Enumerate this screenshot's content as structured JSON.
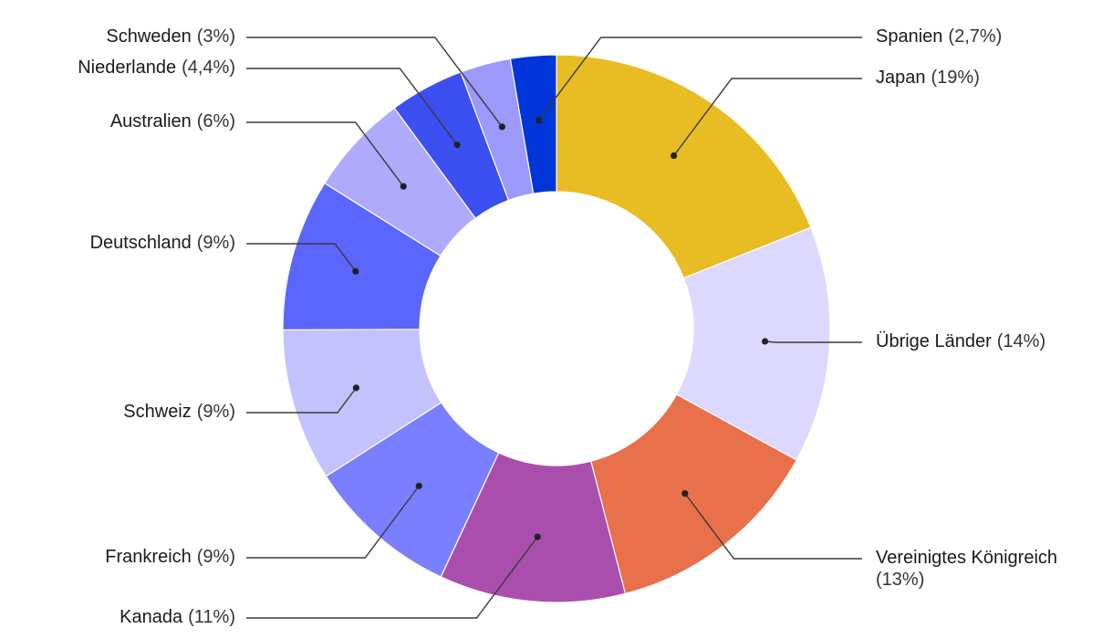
{
  "chart_data": {
    "type": "pie",
    "variant": "donut",
    "title": "",
    "start_at": "top, clockwise",
    "slices": [
      {
        "label": "Japan",
        "value_text": "(19%)",
        "value": 19,
        "color": "#E8BC23"
      },
      {
        "label": "Übrige Länder",
        "value_text": "(14%)",
        "value": 14,
        "color": "#DDD8FF"
      },
      {
        "label": "Vereinigtes Königreich",
        "value_text": "(13%)",
        "value": 13,
        "color": "#E8704B"
      },
      {
        "label": "Kanada",
        "value_text": "(11%)",
        "value": 11,
        "color": "#AA4EAE"
      },
      {
        "label": "Frankreich",
        "value_text": "(9%)",
        "value": 9,
        "color": "#7A7FFF"
      },
      {
        "label": "Schweiz",
        "value_text": "(9%)",
        "value": 9,
        "color": "#C4C2FC"
      },
      {
        "label": "Deutschland",
        "value_text": "(9%)",
        "value": 9,
        "color": "#5B66FF"
      },
      {
        "label": "Australien",
        "value_text": "(6%)",
        "value": 6,
        "color": "#AFAAFB"
      },
      {
        "label": "Niederlande",
        "value_text": "(4,4%)",
        "value": 4.4,
        "color": "#3C4FF0"
      },
      {
        "label": "Schweden",
        "value_text": "(3%)",
        "value": 3,
        "color": "#9B9AFA"
      },
      {
        "label": "Spanien",
        "value_text": "(2,7%)",
        "value": 2.7,
        "color": "#0036D9"
      }
    ]
  }
}
